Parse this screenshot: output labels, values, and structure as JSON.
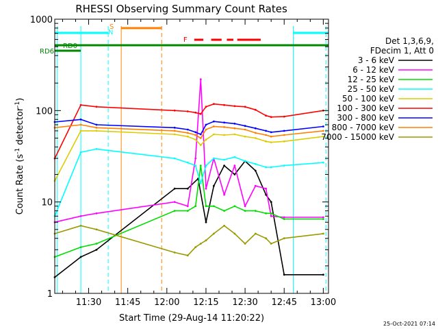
{
  "chart_data": {
    "type": "line",
    "title": "RHESSI Observing Summary Count Rates",
    "xlabel": "Start Time (29-Aug-14 11:20:22)",
    "ylabel_prefix": "Count Rate (s",
    "ylabel_sup": "-1",
    "ylabel_mid": " detector",
    "ylabel_suffix": ")",
    "y_scale": "log",
    "ylim": [
      1,
      1000
    ],
    "xlim_minutes": [
      -3.0,
      102.0
    ],
    "x_ticks": [
      {
        "label": "11:30",
        "t": 10
      },
      {
        "label": "11:45",
        "t": 25
      },
      {
        "label": "12:00",
        "t": 40
      },
      {
        "label": "12:15",
        "t": 55
      },
      {
        "label": "12:30",
        "t": 70
      },
      {
        "label": "12:45",
        "t": 85
      },
      {
        "label": "13:00",
        "t": 100
      }
    ],
    "y_ticks": [
      {
        "label": "1",
        "v": 1
      },
      {
        "label": "10",
        "v": 10
      },
      {
        "label": "100",
        "v": 100
      },
      {
        "label": "1000",
        "v": 1000
      }
    ],
    "legend_header": [
      "Det 1,3,6,9,",
      "FDecim 1, Att 0"
    ],
    "legend_position": "right",
    "series": [
      {
        "name": "3 - 6 keV",
        "color": "#000000",
        "values": [
          [
            -3,
            1.5
          ],
          [
            7,
            2.5
          ],
          [
            13,
            3.0
          ],
          [
            43,
            14
          ],
          [
            48,
            14
          ],
          [
            52,
            18
          ],
          [
            55,
            6
          ],
          [
            58,
            15
          ],
          [
            62,
            25
          ],
          [
            66,
            20
          ],
          [
            70,
            28
          ],
          [
            74,
            22
          ],
          [
            78,
            12
          ],
          [
            80,
            10
          ],
          [
            85,
            1.6
          ],
          [
            100,
            1.6
          ]
        ]
      },
      {
        "name": "6 - 12 keV",
        "color": "#ff00ff",
        "values": [
          [
            -3,
            6
          ],
          [
            7,
            7
          ],
          [
            13,
            7.5
          ],
          [
            43,
            10
          ],
          [
            48,
            9
          ],
          [
            51,
            30
          ],
          [
            53,
            220
          ],
          [
            55,
            14
          ],
          [
            58,
            30
          ],
          [
            62,
            12
          ],
          [
            66,
            25
          ],
          [
            70,
            9
          ],
          [
            74,
            15
          ],
          [
            78,
            14
          ],
          [
            80,
            7
          ],
          [
            85,
            6.8
          ],
          [
            100,
            6.8
          ]
        ]
      },
      {
        "name": "12 - 25 keV",
        "color": "#00dd00",
        "values": [
          [
            -3,
            2.5
          ],
          [
            7,
            3.2
          ],
          [
            13,
            3.5
          ],
          [
            43,
            8
          ],
          [
            48,
            8
          ],
          [
            51,
            9
          ],
          [
            53,
            25
          ],
          [
            55,
            9
          ],
          [
            58,
            9
          ],
          [
            62,
            8
          ],
          [
            66,
            9
          ],
          [
            70,
            8
          ],
          [
            74,
            8
          ],
          [
            78,
            7.5
          ],
          [
            80,
            7.5
          ],
          [
            85,
            6.5
          ],
          [
            100,
            6.5
          ]
        ]
      },
      {
        "name": "25 - 50 keV",
        "color": "#00ffff",
        "values": [
          [
            -3,
            7
          ],
          [
            7,
            35
          ],
          [
            13,
            38
          ],
          [
            43,
            30
          ],
          [
            48,
            27
          ],
          [
            51,
            25
          ],
          [
            53,
            16
          ],
          [
            55,
            25
          ],
          [
            58,
            30
          ],
          [
            62,
            29
          ],
          [
            66,
            31
          ],
          [
            70,
            28
          ],
          [
            74,
            26
          ],
          [
            78,
            24
          ],
          [
            80,
            24
          ],
          [
            85,
            25
          ],
          [
            100,
            27
          ]
        ]
      },
      {
        "name": "50 - 100 keV",
        "color": "#ddcc00",
        "values": [
          [
            -3,
            17
          ],
          [
            7,
            60
          ],
          [
            13,
            60
          ],
          [
            43,
            55
          ],
          [
            48,
            52
          ],
          [
            51,
            48
          ],
          [
            53,
            42
          ],
          [
            55,
            48
          ],
          [
            58,
            55
          ],
          [
            62,
            54
          ],
          [
            66,
            55
          ],
          [
            70,
            52
          ],
          [
            74,
            50
          ],
          [
            78,
            46
          ],
          [
            80,
            45
          ],
          [
            85,
            46
          ],
          [
            100,
            52
          ]
        ]
      },
      {
        "name": "100 - 300 keV",
        "color": "#ff0000",
        "values": [
          [
            -3,
            30
          ],
          [
            7,
            115
          ],
          [
            13,
            110
          ],
          [
            43,
            100
          ],
          [
            48,
            98
          ],
          [
            51,
            95
          ],
          [
            53,
            92
          ],
          [
            55,
            110
          ],
          [
            58,
            118
          ],
          [
            62,
            115
          ],
          [
            66,
            112
          ],
          [
            70,
            110
          ],
          [
            74,
            102
          ],
          [
            78,
            88
          ],
          [
            80,
            85
          ],
          [
            85,
            86
          ],
          [
            100,
            100
          ]
        ]
      },
      {
        "name": "300 - 800 keV",
        "color": "#0000ff",
        "values": [
          [
            -3,
            75
          ],
          [
            7,
            80
          ],
          [
            13,
            70
          ],
          [
            43,
            65
          ],
          [
            48,
            62
          ],
          [
            51,
            58
          ],
          [
            53,
            55
          ],
          [
            55,
            70
          ],
          [
            58,
            76
          ],
          [
            62,
            74
          ],
          [
            66,
            72
          ],
          [
            70,
            68
          ],
          [
            74,
            64
          ],
          [
            78,
            60
          ],
          [
            80,
            58
          ],
          [
            85,
            60
          ],
          [
            100,
            67
          ]
        ]
      },
      {
        "name": "800 - 7000 keV",
        "color": "#ff8000",
        "values": [
          [
            -3,
            65
          ],
          [
            7,
            70
          ],
          [
            13,
            65
          ],
          [
            43,
            60
          ],
          [
            48,
            57
          ],
          [
            51,
            54
          ],
          [
            53,
            50
          ],
          [
            55,
            62
          ],
          [
            58,
            67
          ],
          [
            62,
            66
          ],
          [
            66,
            64
          ],
          [
            70,
            62
          ],
          [
            74,
            57
          ],
          [
            78,
            54
          ],
          [
            80,
            52
          ],
          [
            85,
            54
          ],
          [
            100,
            60
          ]
        ]
      },
      {
        "name": "7000 - 15000 keV",
        "color": "#999900",
        "values": [
          [
            -3,
            4.5
          ],
          [
            7,
            5.5
          ],
          [
            13,
            5.0
          ],
          [
            43,
            2.8
          ],
          [
            48,
            2.6
          ],
          [
            51,
            3.2
          ],
          [
            53,
            3.5
          ],
          [
            55,
            3.8
          ],
          [
            58,
            4.5
          ],
          [
            62,
            5.5
          ],
          [
            66,
            4.5
          ],
          [
            70,
            3.5
          ],
          [
            74,
            4.5
          ],
          [
            78,
            4.0
          ],
          [
            80,
            3.5
          ],
          [
            85,
            4.0
          ],
          [
            100,
            4.5
          ]
        ]
      }
    ],
    "annotations": [
      {
        "label": "S",
        "color": "#ff8000"
      },
      {
        "label": "N",
        "color": "#00ffff"
      },
      {
        "label": "F",
        "color": "#ff0000"
      },
      {
        "label": "RD0",
        "color": "#008800"
      },
      {
        "label": "RD6",
        "color": "#008800"
      }
    ],
    "timestamp": "25-Oct-2021 07:14"
  }
}
